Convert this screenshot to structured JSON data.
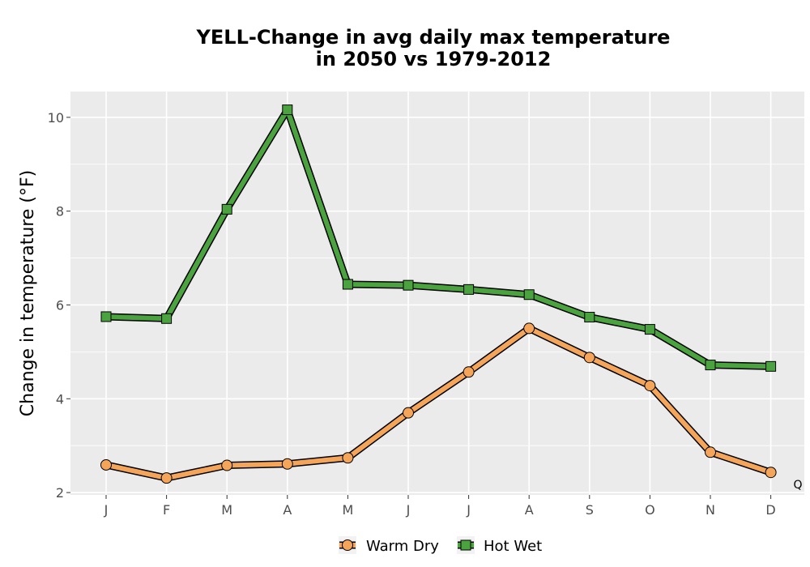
{
  "chart_data": {
    "type": "line",
    "title": [
      "YELL-Change in avg daily max temperature",
      "in 2050 vs 1979-2012"
    ],
    "xlabel": "",
    "ylabel": "Change in temperature (°F)",
    "categories": [
      "J",
      "F",
      "M",
      "A",
      "M",
      "J",
      "J",
      "A",
      "S",
      "O",
      "N",
      "D"
    ],
    "ylim": [
      1.95,
      10.55
    ],
    "yticks": [
      2,
      4,
      6,
      8,
      10
    ],
    "grid": true,
    "legend_position": "bottom",
    "series": [
      {
        "name": "Warm Dry",
        "marker": "circle",
        "color": "#f5a55a",
        "values": [
          2.59,
          2.31,
          2.58,
          2.61,
          2.74,
          3.7,
          4.57,
          5.5,
          4.88,
          4.28,
          2.86,
          2.43
        ]
      },
      {
        "name": "Hot Wet",
        "marker": "square",
        "color": "#4aa33e",
        "values": [
          5.75,
          5.71,
          8.04,
          10.16,
          6.44,
          6.42,
          6.33,
          6.22,
          5.74,
          5.48,
          4.72,
          4.69
        ]
      }
    ],
    "corner_label": "Q"
  }
}
